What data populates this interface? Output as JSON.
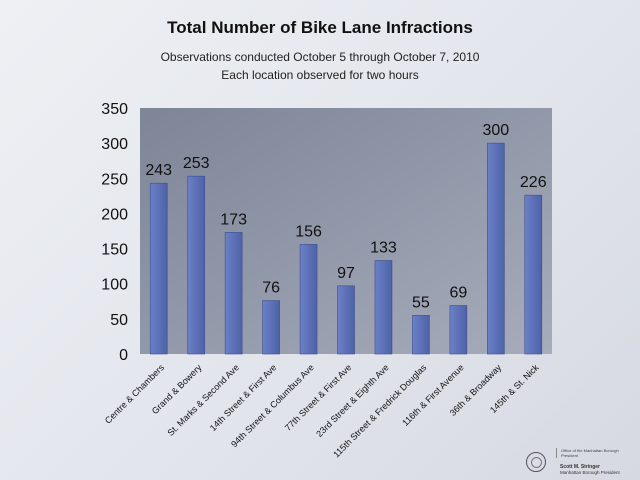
{
  "header": {
    "title": "Total Number of Bike Lane Infractions",
    "subtitle_line1": "Observations conducted October 5 through October 7, 2010",
    "subtitle_line2": "Each location observed for two hours"
  },
  "chart_data": {
    "type": "bar",
    "title": "Total Number of Bike Lane Infractions",
    "subtitle": "Observations conducted October 5 through October 7, 2010 / Each location observed for two hours",
    "categories": [
      "Centre & Chambers",
      "Grand & Bowery",
      "St. Marks & Second Ave",
      "14th Street & First Ave",
      "94th Street & Columbus Ave",
      "77th Street & First Ave",
      "23rd Street & Eighth Ave",
      "115th Street & Fredrick Douglas",
      "116th & First Avenue",
      "36th & Broadway",
      "145th & St. Nick"
    ],
    "values": [
      243,
      253,
      173,
      76,
      156,
      97,
      133,
      55,
      69,
      300,
      226
    ],
    "data_labels": [
      "243",
      "253",
      "173",
      "76",
      "156",
      "97",
      "133",
      "55",
      "69",
      "300",
      "226"
    ],
    "ylim": [
      0,
      350
    ],
    "yticks": [
      0,
      50,
      100,
      150,
      200,
      250,
      300,
      350
    ],
    "ytick_labels": [
      "0",
      "50",
      "100",
      "150",
      "200",
      "250",
      "300",
      "350"
    ],
    "xlabel": "",
    "ylabel": "",
    "grid": false,
    "legend": "none",
    "colors": {
      "bar": "#5a6fb6",
      "bar_edge": "#3d4f8e",
      "plot_bg": "#8f97a8"
    }
  },
  "footer": {
    "office": "Office of the Manhattan Borough President",
    "signer_name": "Scott M. Stringer",
    "signer_title": "Manhattan Borough President"
  }
}
